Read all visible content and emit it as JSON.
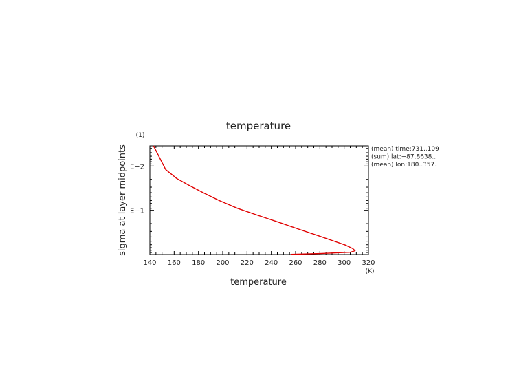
{
  "chart_data": {
    "type": "line",
    "title": "temperature",
    "xlabel": "temperature",
    "ylabel": "sigma at layer midpoints",
    "x_unit": "(K)",
    "y_unit": "(1)",
    "xlim": [
      140,
      320
    ],
    "x_ticks": [
      "140",
      "160",
      "180",
      "200",
      "220",
      "240",
      "260",
      "280",
      "300",
      "320"
    ],
    "y_scale": "log",
    "ylim": [
      1,
      0.0035
    ],
    "y_tick_labels": [
      "E−2",
      "E−1"
    ],
    "annotations": [
      "(mean) time:731..109",
      "(sum) lat:−87.8638..",
      "(mean) lon:180..357."
    ],
    "grid": false,
    "series": [
      {
        "color": "#e00000",
        "x": [
          143,
          153,
          162,
          172,
          184,
          197,
          212,
          229,
          247,
          263,
          278,
          291,
          301,
          307,
          309,
          305,
          280,
          256
        ],
        "y": [
          0.0035,
          0.012,
          0.019,
          0.027,
          0.04,
          0.06,
          0.09,
          0.13,
          0.19,
          0.27,
          0.37,
          0.49,
          0.61,
          0.73,
          0.82,
          0.89,
          0.95,
          0.99
        ]
      }
    ]
  }
}
